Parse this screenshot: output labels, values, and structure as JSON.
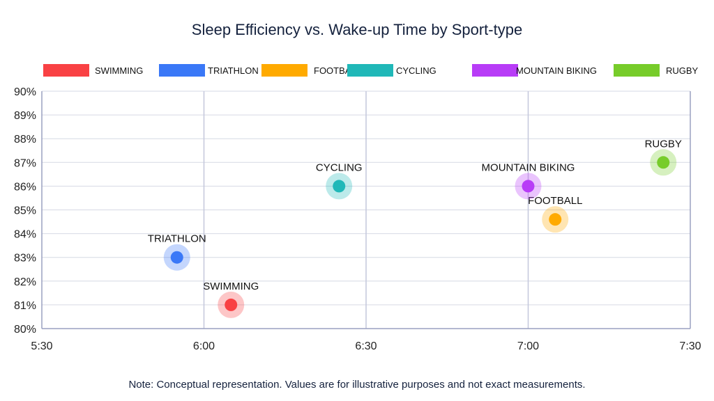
{
  "chart_data": {
    "type": "scatter",
    "title": "Sleep Efficiency vs. Wake-up Time by Sport-type",
    "xlabel": "",
    "ylabel": "",
    "x_ticks": [
      "5:30",
      "6:00",
      "6:30",
      "7:00",
      "7:30"
    ],
    "y_ticks": [
      "80%",
      "81%",
      "82%",
      "83%",
      "84%",
      "85%",
      "86%",
      "87%",
      "88%",
      "89%",
      "90%"
    ],
    "xlim": [
      "5:30",
      "7:30"
    ],
    "ylim": [
      80,
      90
    ],
    "grid": true,
    "legend_position": "top",
    "series": [
      {
        "name": "SWIMMING",
        "color": "#f94144",
        "x": "6:05",
        "y": 81
      },
      {
        "name": "TRIATHLON",
        "color": "#3a78f7",
        "x": "5:55",
        "y": 83
      },
      {
        "name": "FOOTBALL",
        "color": "#ffaa00",
        "x": "7:05",
        "y": 84.6
      },
      {
        "name": "CYCLING",
        "color": "#20b8b8",
        "x": "6:25",
        "y": 86
      },
      {
        "name": "MOUNTAIN BIKING",
        "color": "#b83cf7",
        "x": "7:00",
        "y": 86
      },
      {
        "name": "RUGBY",
        "color": "#77cc2a",
        "x": "7:25",
        "y": 87
      }
    ]
  },
  "note": "Note: Conceptual representation. Values are for illustrative purposes and not exact measurements."
}
